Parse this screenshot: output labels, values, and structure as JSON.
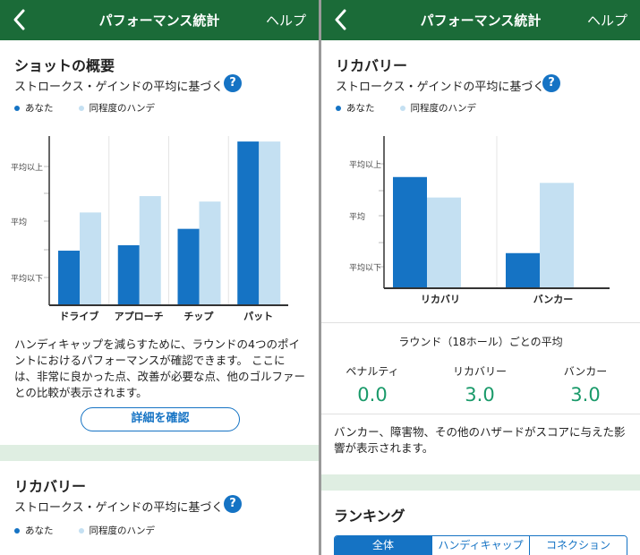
{
  "header": {
    "title": "パフォーマンス統計",
    "help": "ヘルプ"
  },
  "legend": {
    "you": "あなた",
    "peer": "同程度のハンデ"
  },
  "colors": {
    "you": "#1573c4",
    "peer": "#c4e0f2",
    "header": "#1b6b38",
    "stat": "#1a9a6a"
  },
  "left": {
    "shots": {
      "title": "ショットの概要",
      "subtitle": "ストロークス・ゲインドの平均に基づく",
      "help_icon": "?",
      "chart_data": {
        "type": "bar",
        "categories": [
          "ドライブ",
          "アプローチ",
          "チップ",
          "パット"
        ],
        "y_tick_labels": [
          "平均以上",
          "平均",
          "平均以下"
        ],
        "series": [
          {
            "name": "あなた",
            "values": [
              -0.5,
              -0.4,
              -0.1,
              1.5
            ]
          },
          {
            "name": "同程度のハンデ",
            "values": [
              0.2,
              0.5,
              0.4,
              1.5
            ]
          }
        ],
        "ylim": [
          -1.5,
          1.6
        ]
      },
      "description": [
        "ハンディキャップを減らすために、ラウンドの4つのポイ",
        "ントにおけるパフォーマンスが確認できます。 ここに",
        "は、非常に良かった点、改善が必要な点、他のゴルファー",
        "との比較が表示されます。"
      ],
      "detail_button": "詳細を確認"
    },
    "recovery": {
      "title": "リカバリー",
      "subtitle": "ストロークス・ゲインドの平均に基づく",
      "help_icon": "?"
    }
  },
  "right": {
    "recovery": {
      "title": "リカバリー",
      "subtitle": "ストロークス・ゲインドの平均に基づく",
      "help_icon": "?",
      "chart_data": {
        "type": "bar",
        "categories": [
          "リカバリ",
          "バンカー"
        ],
        "y_tick_labels": [
          "平均以上",
          "平均",
          "平均以下"
        ],
        "series": [
          {
            "name": "あなた",
            "values": [
              0.6,
              -0.7
            ]
          },
          {
            "name": "同程度のハンデ",
            "values": [
              0.25,
              0.5
            ]
          }
        ],
        "ylim": [
          -1.3,
          1.3
        ]
      }
    },
    "averages": {
      "title": "ラウンド（18ホール）ごとの平均",
      "stats": [
        {
          "label": "ペナルティ",
          "value": "0.0"
        },
        {
          "label": "リカバリー",
          "value": "3.0"
        },
        {
          "label": "バンカー",
          "value": "3.0"
        }
      ],
      "description": [
        "バンカー、障害物、その他のハザードがスコアに与えた影",
        "響が表示されます。"
      ]
    },
    "ranking": {
      "title": "ランキング",
      "tabs": [
        {
          "label": "全体",
          "active": true
        },
        {
          "label": "ハンディキャップ",
          "active": false
        },
        {
          "label": "コネクション",
          "active": false
        }
      ]
    }
  }
}
